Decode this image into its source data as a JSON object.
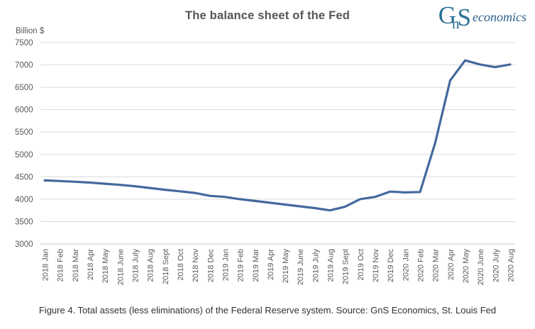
{
  "logo": {
    "g": "G",
    "n": "n",
    "s": "S",
    "word": "economics"
  },
  "caption": "Figure 4. Total assets (less eliminations) of the Federal Reserve system. Source: GnS Economics, St. Louis Fed",
  "chart_data": {
    "type": "line",
    "title": "The balance sheet of the Fed",
    "xlabel": "",
    "ylabel": "Billion $",
    "ylim": [
      3000,
      7500
    ],
    "yticks": [
      7500,
      7000,
      6500,
      6000,
      5500,
      5000,
      4500,
      4000,
      3500,
      3000
    ],
    "grid": true,
    "legend": "none",
    "categories": [
      "2018 Jan",
      "2018 Feb",
      "2018 Mar",
      "2018 Apr",
      "2018 May",
      "2018 June",
      "2018 July",
      "2018 Aug",
      "2018 Sept",
      "2018 Oct",
      "2018 Nov",
      "2018 Dec",
      "2019 Jan",
      "2019 Feb",
      "2019 Mar",
      "2019 Apr",
      "2019 May",
      "2019 June",
      "2019 July",
      "2019 Aug",
      "2019 Sept",
      "2019 Oct",
      "2019 Nov",
      "2019 Dec",
      "2020 Jan",
      "2020 Feb",
      "2020 Mar",
      "2020 Apr",
      "2020 May",
      "2020 June",
      "2020 July",
      "2020 Aug"
    ],
    "values": [
      4420,
      4405,
      4390,
      4370,
      4345,
      4320,
      4290,
      4250,
      4210,
      4175,
      4140,
      4075,
      4050,
      4000,
      3960,
      3920,
      3880,
      3840,
      3800,
      3750,
      3830,
      4000,
      4050,
      4170,
      4150,
      4160,
      5250,
      6650,
      7100,
      7010,
      6950,
      7010
    ],
    "colors": {
      "line": "#44699e",
      "grid": "#d9d9d9",
      "axis_line": "#c9c9c9",
      "tick_text": "#595959",
      "title_text": "#555555",
      "logo_mark": "#2a7095",
      "logo_word": "#2c5f8a",
      "caption_text": "#303030"
    }
  }
}
